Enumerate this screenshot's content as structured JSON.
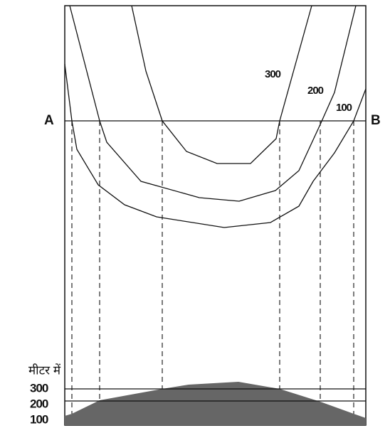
{
  "points": {
    "a": "A",
    "b": "B"
  },
  "contour_labels": [
    "300",
    "200",
    "100"
  ],
  "profile": {
    "unit": "मीटर में",
    "heights": [
      "300",
      "200",
      "100"
    ]
  }
}
